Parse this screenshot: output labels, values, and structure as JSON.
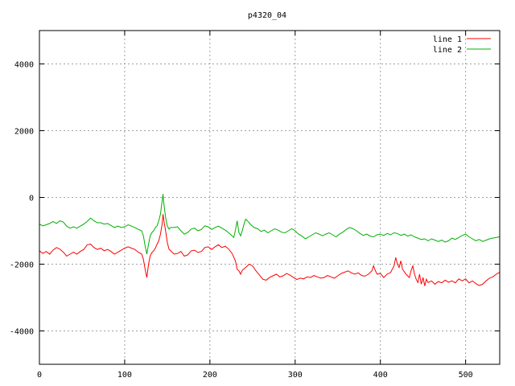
{
  "chart_data": {
    "type": "line",
    "title": "p4320_04",
    "xlabel": "",
    "ylabel": "",
    "xlim": [
      0,
      540
    ],
    "ylim": [
      -5000,
      5000
    ],
    "x_ticks": [
      0,
      100,
      200,
      300,
      400,
      500
    ],
    "y_ticks": [
      -4000,
      -2000,
      0,
      2000,
      4000
    ],
    "grid": true,
    "legend_position": "top-right",
    "series": [
      {
        "name": "line 1",
        "color": "#ff0000",
        "points": [
          [
            0,
            -1600
          ],
          [
            4,
            -1680
          ],
          [
            8,
            -1620
          ],
          [
            12,
            -1700
          ],
          [
            16,
            -1580
          ],
          [
            20,
            -1500
          ],
          [
            24,
            -1550
          ],
          [
            28,
            -1640
          ],
          [
            32,
            -1760
          ],
          [
            36,
            -1700
          ],
          [
            40,
            -1640
          ],
          [
            44,
            -1700
          ],
          [
            48,
            -1620
          ],
          [
            52,
            -1560
          ],
          [
            56,
            -1420
          ],
          [
            60,
            -1400
          ],
          [
            64,
            -1500
          ],
          [
            68,
            -1560
          ],
          [
            72,
            -1520
          ],
          [
            76,
            -1600
          ],
          [
            80,
            -1560
          ],
          [
            84,
            -1620
          ],
          [
            88,
            -1700
          ],
          [
            92,
            -1640
          ],
          [
            96,
            -1580
          ],
          [
            100,
            -1520
          ],
          [
            104,
            -1480
          ],
          [
            108,
            -1520
          ],
          [
            112,
            -1560
          ],
          [
            116,
            -1640
          ],
          [
            120,
            -1700
          ],
          [
            122,
            -1850
          ],
          [
            124,
            -2150
          ],
          [
            126,
            -2400
          ],
          [
            128,
            -2000
          ],
          [
            130,
            -1750
          ],
          [
            132,
            -1650
          ],
          [
            134,
            -1600
          ],
          [
            136,
            -1520
          ],
          [
            138,
            -1400
          ],
          [
            140,
            -1300
          ],
          [
            142,
            -1100
          ],
          [
            144,
            -800
          ],
          [
            145,
            -500
          ],
          [
            146,
            -700
          ],
          [
            148,
            -1000
          ],
          [
            150,
            -1350
          ],
          [
            152,
            -1550
          ],
          [
            154,
            -1600
          ],
          [
            158,
            -1700
          ],
          [
            162,
            -1680
          ],
          [
            166,
            -1620
          ],
          [
            170,
            -1760
          ],
          [
            174,
            -1720
          ],
          [
            178,
            -1600
          ],
          [
            182,
            -1580
          ],
          [
            186,
            -1650
          ],
          [
            190,
            -1620
          ],
          [
            194,
            -1500
          ],
          [
            198,
            -1480
          ],
          [
            202,
            -1560
          ],
          [
            206,
            -1480
          ],
          [
            210,
            -1420
          ],
          [
            214,
            -1500
          ],
          [
            218,
            -1460
          ],
          [
            222,
            -1550
          ],
          [
            226,
            -1680
          ],
          [
            230,
            -1900
          ],
          [
            232,
            -2150
          ],
          [
            234,
            -2200
          ],
          [
            236,
            -2300
          ],
          [
            238,
            -2180
          ],
          [
            242,
            -2100
          ],
          [
            246,
            -2000
          ],
          [
            250,
            -2050
          ],
          [
            254,
            -2200
          ],
          [
            258,
            -2320
          ],
          [
            262,
            -2450
          ],
          [
            266,
            -2480
          ],
          [
            270,
            -2400
          ],
          [
            274,
            -2350
          ],
          [
            278,
            -2300
          ],
          [
            282,
            -2380
          ],
          [
            286,
            -2350
          ],
          [
            290,
            -2280
          ],
          [
            294,
            -2330
          ],
          [
            298,
            -2400
          ],
          [
            302,
            -2460
          ],
          [
            306,
            -2420
          ],
          [
            310,
            -2440
          ],
          [
            314,
            -2380
          ],
          [
            318,
            -2400
          ],
          [
            322,
            -2340
          ],
          [
            326,
            -2380
          ],
          [
            330,
            -2420
          ],
          [
            334,
            -2400
          ],
          [
            338,
            -2340
          ],
          [
            342,
            -2380
          ],
          [
            346,
            -2420
          ],
          [
            350,
            -2350
          ],
          [
            354,
            -2280
          ],
          [
            358,
            -2240
          ],
          [
            362,
            -2200
          ],
          [
            366,
            -2260
          ],
          [
            370,
            -2300
          ],
          [
            374,
            -2260
          ],
          [
            378,
            -2340
          ],
          [
            382,
            -2360
          ],
          [
            386,
            -2300
          ],
          [
            390,
            -2200
          ],
          [
            392,
            -2050
          ],
          [
            394,
            -2180
          ],
          [
            396,
            -2300
          ],
          [
            400,
            -2280
          ],
          [
            404,
            -2400
          ],
          [
            408,
            -2300
          ],
          [
            412,
            -2250
          ],
          [
            416,
            -2050
          ],
          [
            418,
            -1800
          ],
          [
            420,
            -2000
          ],
          [
            422,
            -2100
          ],
          [
            424,
            -1900
          ],
          [
            426,
            -2150
          ],
          [
            430,
            -2300
          ],
          [
            434,
            -2400
          ],
          [
            436,
            -2200
          ],
          [
            438,
            -2050
          ],
          [
            440,
            -2300
          ],
          [
            442,
            -2450
          ],
          [
            444,
            -2550
          ],
          [
            446,
            -2300
          ],
          [
            448,
            -2600
          ],
          [
            450,
            -2400
          ],
          [
            452,
            -2650
          ],
          [
            454,
            -2450
          ],
          [
            456,
            -2550
          ],
          [
            460,
            -2500
          ],
          [
            464,
            -2600
          ],
          [
            468,
            -2520
          ],
          [
            472,
            -2560
          ],
          [
            476,
            -2480
          ],
          [
            480,
            -2540
          ],
          [
            484,
            -2500
          ],
          [
            488,
            -2560
          ],
          [
            492,
            -2440
          ],
          [
            496,
            -2500
          ],
          [
            500,
            -2440
          ],
          [
            504,
            -2560
          ],
          [
            508,
            -2500
          ],
          [
            512,
            -2580
          ],
          [
            516,
            -2640
          ],
          [
            520,
            -2600
          ],
          [
            524,
            -2500
          ],
          [
            528,
            -2420
          ],
          [
            532,
            -2380
          ],
          [
            536,
            -2300
          ],
          [
            540,
            -2240
          ]
        ]
      },
      {
        "name": "line 2",
        "color": "#00b000",
        "points": [
          [
            0,
            -800
          ],
          [
            4,
            -850
          ],
          [
            8,
            -820
          ],
          [
            12,
            -780
          ],
          [
            16,
            -720
          ],
          [
            20,
            -780
          ],
          [
            24,
            -700
          ],
          [
            28,
            -740
          ],
          [
            32,
            -860
          ],
          [
            36,
            -920
          ],
          [
            40,
            -880
          ],
          [
            44,
            -920
          ],
          [
            48,
            -860
          ],
          [
            52,
            -800
          ],
          [
            56,
            -720
          ],
          [
            60,
            -620
          ],
          [
            64,
            -700
          ],
          [
            68,
            -760
          ],
          [
            72,
            -760
          ],
          [
            76,
            -800
          ],
          [
            80,
            -780
          ],
          [
            84,
            -840
          ],
          [
            88,
            -900
          ],
          [
            92,
            -860
          ],
          [
            96,
            -900
          ],
          [
            100,
            -880
          ],
          [
            104,
            -820
          ],
          [
            108,
            -860
          ],
          [
            112,
            -900
          ],
          [
            116,
            -960
          ],
          [
            120,
            -1000
          ],
          [
            122,
            -1150
          ],
          [
            124,
            -1450
          ],
          [
            126,
            -1700
          ],
          [
            128,
            -1400
          ],
          [
            130,
            -1150
          ],
          [
            132,
            -1050
          ],
          [
            134,
            -1000
          ],
          [
            136,
            -900
          ],
          [
            138,
            -850
          ],
          [
            140,
            -700
          ],
          [
            142,
            -500
          ],
          [
            144,
            -100
          ],
          [
            145,
            100
          ],
          [
            146,
            -200
          ],
          [
            148,
            -600
          ],
          [
            150,
            -850
          ],
          [
            152,
            -950
          ],
          [
            154,
            -900
          ],
          [
            158,
            -900
          ],
          [
            162,
            -880
          ],
          [
            166,
            -1000
          ],
          [
            170,
            -1100
          ],
          [
            174,
            -1050
          ],
          [
            178,
            -950
          ],
          [
            182,
            -920
          ],
          [
            186,
            -1000
          ],
          [
            190,
            -960
          ],
          [
            194,
            -850
          ],
          [
            198,
            -880
          ],
          [
            202,
            -960
          ],
          [
            206,
            -900
          ],
          [
            210,
            -860
          ],
          [
            214,
            -920
          ],
          [
            218,
            -980
          ],
          [
            222,
            -1060
          ],
          [
            226,
            -1150
          ],
          [
            228,
            -1200
          ],
          [
            230,
            -980
          ],
          [
            232,
            -700
          ],
          [
            234,
            -1050
          ],
          [
            236,
            -1150
          ],
          [
            238,
            -1000
          ],
          [
            240,
            -800
          ],
          [
            242,
            -650
          ],
          [
            244,
            -700
          ],
          [
            248,
            -820
          ],
          [
            252,
            -900
          ],
          [
            256,
            -940
          ],
          [
            260,
            -1020
          ],
          [
            264,
            -980
          ],
          [
            268,
            -1060
          ],
          [
            272,
            -1000
          ],
          [
            276,
            -940
          ],
          [
            280,
            -980
          ],
          [
            284,
            -1040
          ],
          [
            288,
            -1060
          ],
          [
            292,
            -1000
          ],
          [
            296,
            -940
          ],
          [
            300,
            -1000
          ],
          [
            304,
            -1100
          ],
          [
            308,
            -1160
          ],
          [
            312,
            -1240
          ],
          [
            316,
            -1180
          ],
          [
            320,
            -1120
          ],
          [
            324,
            -1060
          ],
          [
            328,
            -1100
          ],
          [
            332,
            -1150
          ],
          [
            336,
            -1100
          ],
          [
            340,
            -1060
          ],
          [
            344,
            -1120
          ],
          [
            348,
            -1180
          ],
          [
            352,
            -1100
          ],
          [
            356,
            -1040
          ],
          [
            360,
            -960
          ],
          [
            364,
            -900
          ],
          [
            368,
            -940
          ],
          [
            372,
            -1000
          ],
          [
            376,
            -1080
          ],
          [
            380,
            -1140
          ],
          [
            384,
            -1100
          ],
          [
            388,
            -1160
          ],
          [
            392,
            -1180
          ],
          [
            396,
            -1120
          ],
          [
            400,
            -1100
          ],
          [
            404,
            -1140
          ],
          [
            408,
            -1080
          ],
          [
            412,
            -1120
          ],
          [
            416,
            -1060
          ],
          [
            420,
            -1080
          ],
          [
            424,
            -1140
          ],
          [
            428,
            -1100
          ],
          [
            432,
            -1160
          ],
          [
            436,
            -1120
          ],
          [
            440,
            -1180
          ],
          [
            444,
            -1220
          ],
          [
            448,
            -1260
          ],
          [
            452,
            -1240
          ],
          [
            456,
            -1300
          ],
          [
            460,
            -1240
          ],
          [
            464,
            -1280
          ],
          [
            468,
            -1320
          ],
          [
            472,
            -1280
          ],
          [
            476,
            -1340
          ],
          [
            480,
            -1300
          ],
          [
            484,
            -1220
          ],
          [
            488,
            -1260
          ],
          [
            492,
            -1200
          ],
          [
            496,
            -1140
          ],
          [
            500,
            -1100
          ],
          [
            504,
            -1180
          ],
          [
            508,
            -1240
          ],
          [
            512,
            -1300
          ],
          [
            516,
            -1260
          ],
          [
            520,
            -1320
          ],
          [
            524,
            -1280
          ],
          [
            528,
            -1240
          ],
          [
            532,
            -1220
          ],
          [
            536,
            -1200
          ],
          [
            540,
            -1180
          ]
        ]
      }
    ]
  }
}
